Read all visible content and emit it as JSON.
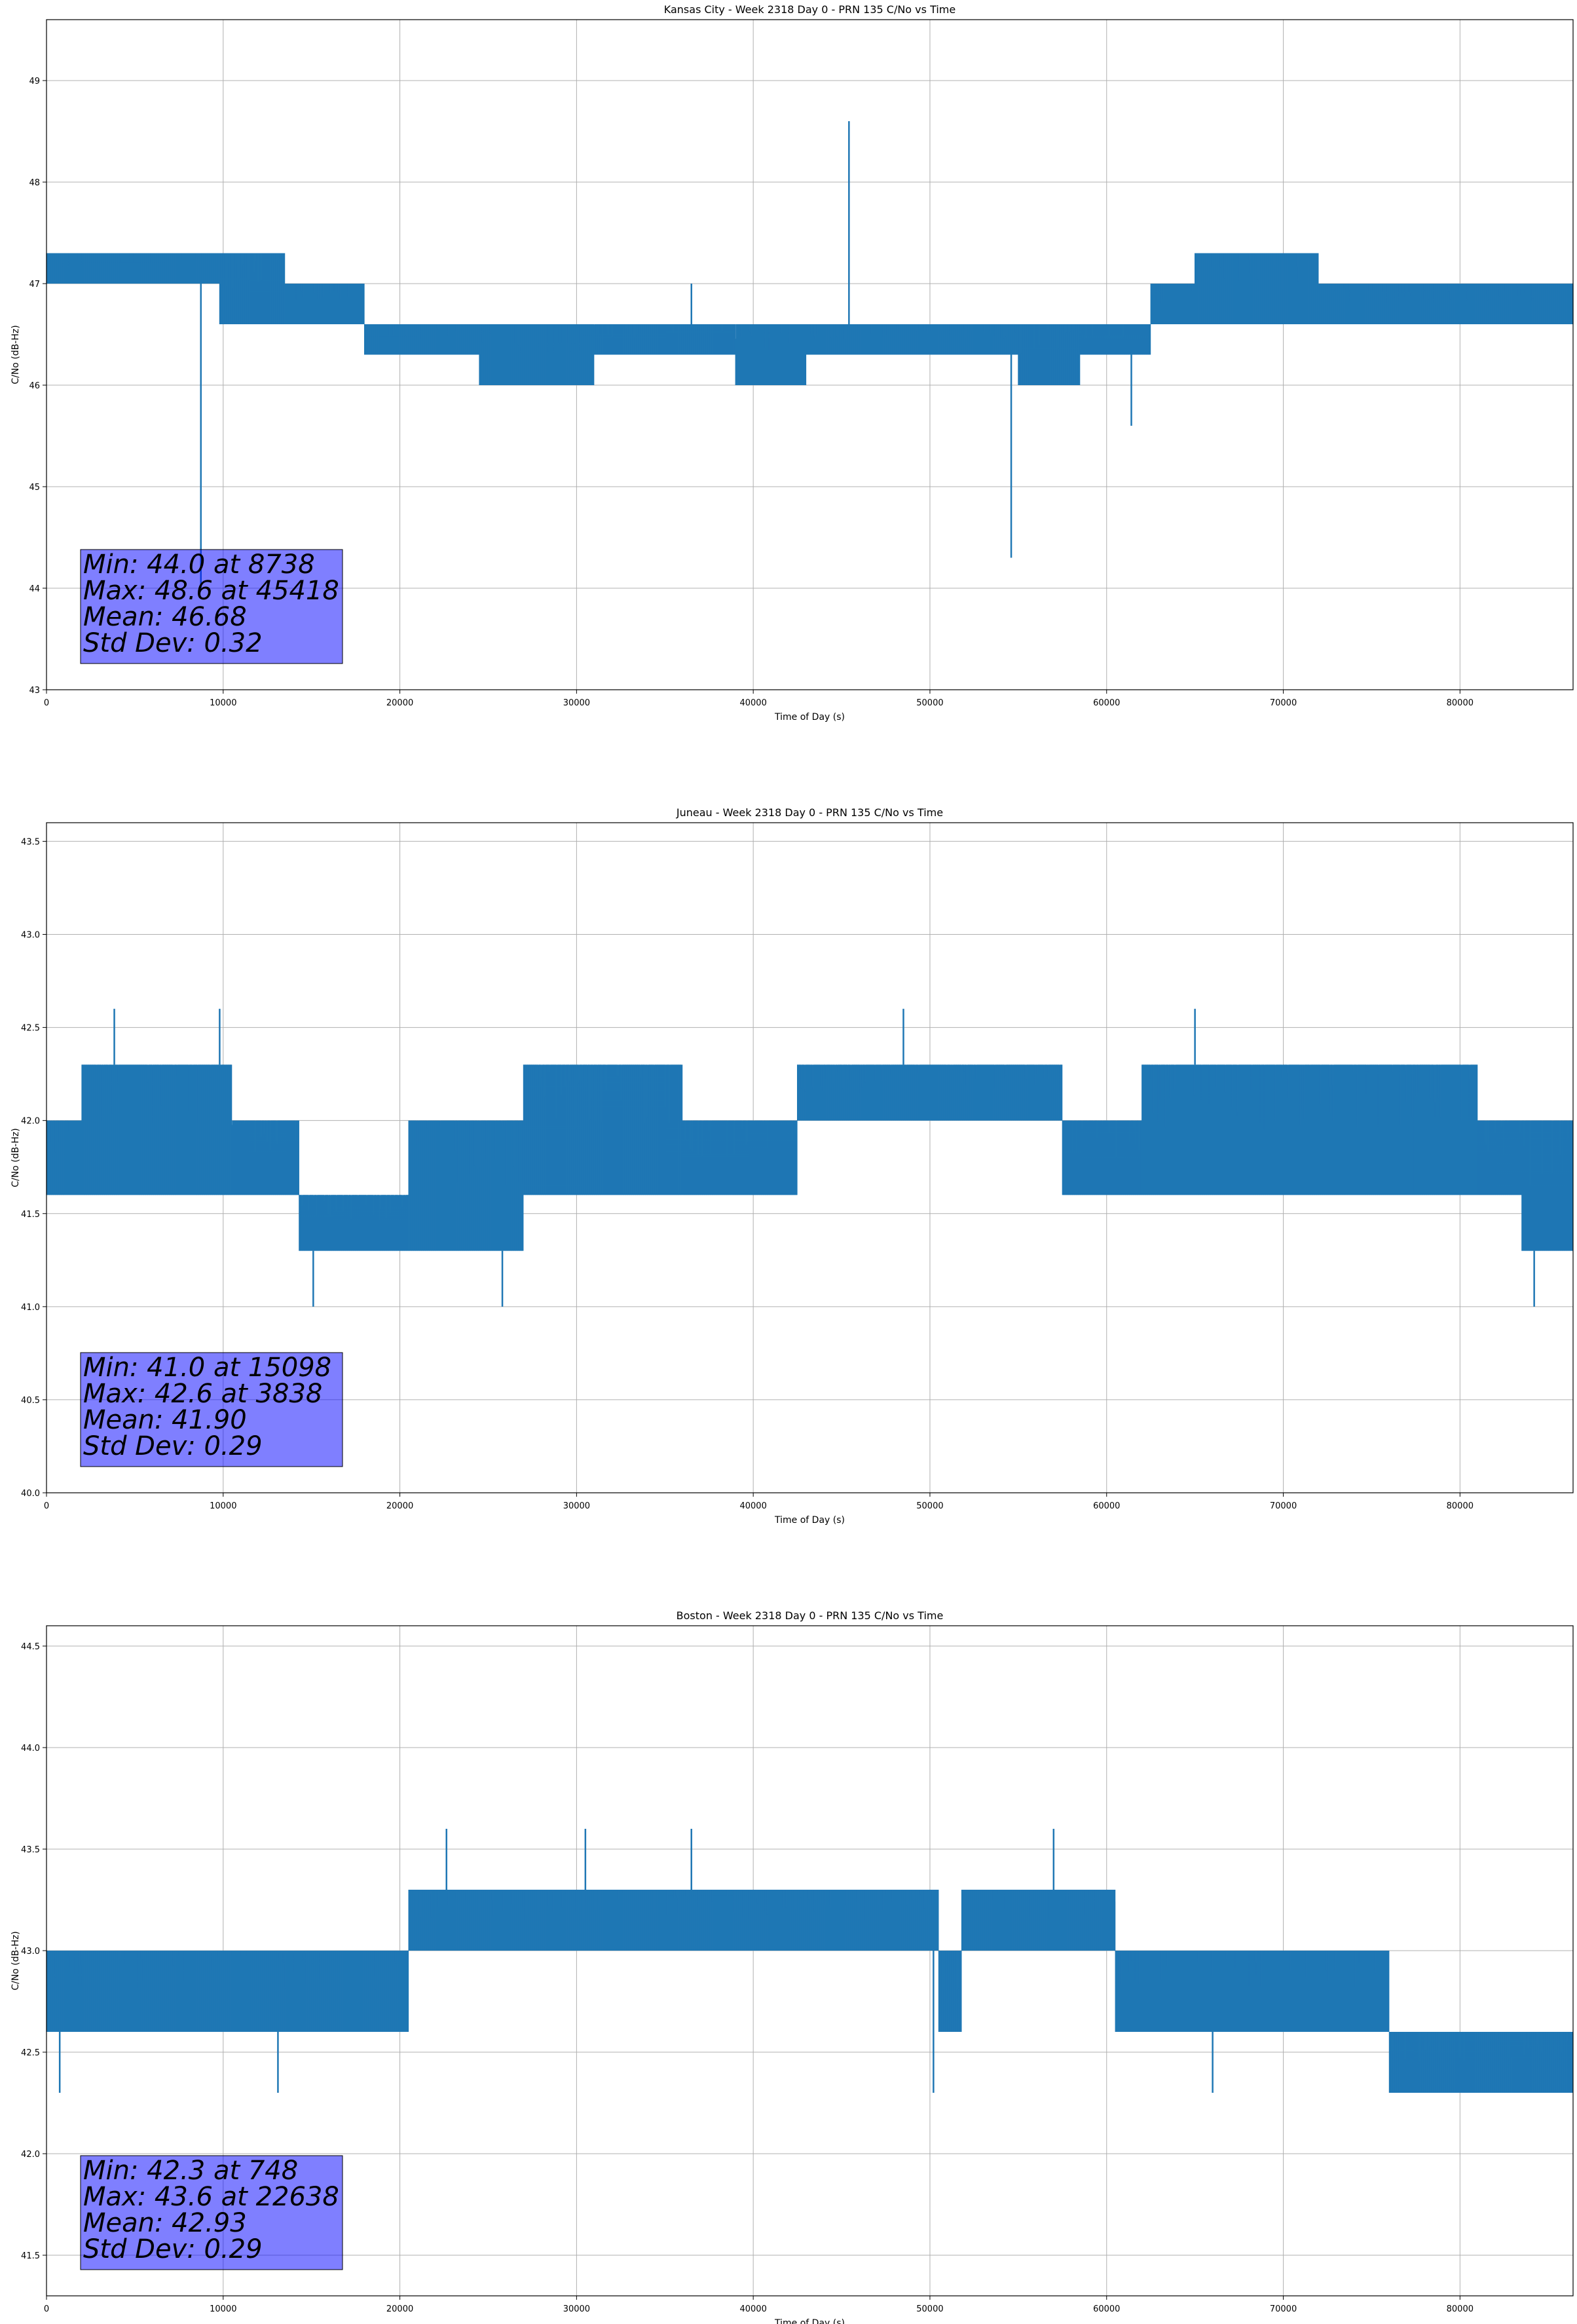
{
  "chart_data": [
    {
      "type": "line",
      "title": "Kansas City - Week 2318 Day 0 - PRN 135 C/No vs Time",
      "xlabel": "Time of Day (s)",
      "ylabel": "C/No (dB-Hz)",
      "xlim": [
        0,
        86400
      ],
      "ylim": [
        43,
        49.6
      ],
      "xticks": [
        0,
        10000,
        20000,
        30000,
        40000,
        50000,
        60000,
        70000,
        80000
      ],
      "xtick_labels": [
        "0",
        "10000",
        "20000",
        "30000",
        "40000",
        "50000",
        "60000",
        "70000",
        "80000"
      ],
      "yticks": [
        43,
        44,
        45,
        46,
        47,
        48,
        49
      ],
      "ytick_labels": [
        "43",
        "44",
        "45",
        "46",
        "47",
        "48",
        "49"
      ],
      "grid": true,
      "series_color": "#1f77b4",
      "segments": [
        {
          "x0": 0,
          "x1": 9800,
          "lo": 47.0,
          "hi": 47.3
        },
        {
          "x0": 9800,
          "x1": 13500,
          "lo": 46.6,
          "hi": 47.3
        },
        {
          "x0": 13500,
          "x1": 18000,
          "lo": 46.6,
          "hi": 47.0
        },
        {
          "x0": 18000,
          "x1": 24500,
          "lo": 46.3,
          "hi": 46.6
        },
        {
          "x0": 24500,
          "x1": 31000,
          "lo": 46.0,
          "hi": 46.6
        },
        {
          "x0": 31000,
          "x1": 39000,
          "lo": 46.3,
          "hi": 46.6
        },
        {
          "x0": 39000,
          "x1": 43000,
          "lo": 46.0,
          "hi": 46.6
        },
        {
          "x0": 43000,
          "x1": 55000,
          "lo": 46.3,
          "hi": 46.6
        },
        {
          "x0": 55000,
          "x1": 58500,
          "lo": 46.0,
          "hi": 46.6
        },
        {
          "x0": 58500,
          "x1": 62500,
          "lo": 46.3,
          "hi": 46.6
        },
        {
          "x0": 62500,
          "x1": 65000,
          "lo": 46.6,
          "hi": 47.0
        },
        {
          "x0": 65000,
          "x1": 72000,
          "lo": 46.6,
          "hi": 47.3
        },
        {
          "x0": 72000,
          "x1": 86400,
          "lo": 46.6,
          "hi": 47.0
        }
      ],
      "spikes": [
        {
          "x": 8738,
          "y": 44.0
        },
        {
          "x": 45418,
          "y": 48.6
        },
        {
          "x": 54600,
          "y": 44.3
        },
        {
          "x": 61400,
          "y": 45.6
        },
        {
          "x": 36500,
          "y": 47.0
        }
      ],
      "stats": [
        "Min: 44.0 at 8738",
        "Max: 48.6 at 45418",
        "Mean: 46.68",
        "Std Dev: 0.32"
      ]
    },
    {
      "type": "line",
      "title": "Juneau - Week 2318 Day 0 - PRN 135 C/No vs Time",
      "xlabel": "Time of Day (s)",
      "ylabel": "C/No (dB-Hz)",
      "xlim": [
        0,
        86400
      ],
      "ylim": [
        40.0,
        43.6
      ],
      "xticks": [
        0,
        10000,
        20000,
        30000,
        40000,
        50000,
        60000,
        70000,
        80000
      ],
      "xtick_labels": [
        "0",
        "10000",
        "20000",
        "30000",
        "40000",
        "50000",
        "60000",
        "70000",
        "80000"
      ],
      "yticks": [
        40.0,
        40.5,
        41.0,
        41.5,
        42.0,
        42.5,
        43.0,
        43.5
      ],
      "ytick_labels": [
        "40.0",
        "40.5",
        "41.0",
        "41.5",
        "42.0",
        "42.5",
        "43.0",
        "43.5"
      ],
      "grid": true,
      "series_color": "#1f77b4",
      "segments": [
        {
          "x0": 0,
          "x1": 2000,
          "lo": 41.6,
          "hi": 42.0
        },
        {
          "x0": 2000,
          "x1": 10500,
          "lo": 41.6,
          "hi": 42.3
        },
        {
          "x0": 10500,
          "x1": 14300,
          "lo": 41.6,
          "hi": 42.0
        },
        {
          "x0": 14300,
          "x1": 20500,
          "lo": 41.3,
          "hi": 41.6
        },
        {
          "x0": 20500,
          "x1": 27000,
          "lo": 41.3,
          "hi": 42.0
        },
        {
          "x0": 27000,
          "x1": 36000,
          "lo": 41.6,
          "hi": 42.3
        },
        {
          "x0": 36000,
          "x1": 42500,
          "lo": 41.6,
          "hi": 42.0
        },
        {
          "x0": 42500,
          "x1": 57500,
          "lo": 42.0,
          "hi": 42.3
        },
        {
          "x0": 57500,
          "x1": 62000,
          "lo": 41.6,
          "hi": 42.0
        },
        {
          "x0": 62000,
          "x1": 81000,
          "lo": 41.6,
          "hi": 42.3
        },
        {
          "x0": 81000,
          "x1": 83500,
          "lo": 41.6,
          "hi": 42.0
        },
        {
          "x0": 83500,
          "x1": 86400,
          "lo": 41.3,
          "hi": 42.0
        }
      ],
      "spikes": [
        {
          "x": 3838,
          "y": 42.6
        },
        {
          "x": 15098,
          "y": 41.0
        },
        {
          "x": 9800,
          "y": 42.6
        },
        {
          "x": 25800,
          "y": 41.0
        },
        {
          "x": 48500,
          "y": 42.6
        },
        {
          "x": 65000,
          "y": 42.6
        },
        {
          "x": 84200,
          "y": 41.0
        }
      ],
      "stats": [
        "Min: 41.0 at 15098",
        "Max: 42.6 at 3838",
        "Mean: 41.90",
        "Std Dev: 0.29"
      ]
    },
    {
      "type": "line",
      "title": "Boston - Week 2318 Day 0 - PRN 135 C/No vs Time",
      "xlabel": "Time of Day (s)",
      "ylabel": "C/No (dB-Hz)",
      "xlim": [
        0,
        86400
      ],
      "ylim": [
        41.3,
        44.6
      ],
      "xticks": [
        0,
        10000,
        20000,
        30000,
        40000,
        50000,
        60000,
        70000,
        80000
      ],
      "xtick_labels": [
        "0",
        "10000",
        "20000",
        "30000",
        "40000",
        "50000",
        "60000",
        "70000",
        "80000"
      ],
      "yticks": [
        41.5,
        42.0,
        42.5,
        43.0,
        43.5,
        44.0,
        44.5
      ],
      "ytick_labels": [
        "41.5",
        "42.0",
        "42.5",
        "43.0",
        "43.5",
        "44.0",
        "44.5"
      ],
      "grid": true,
      "series_color": "#1f77b4",
      "segments": [
        {
          "x0": 0,
          "x1": 20500,
          "lo": 42.6,
          "hi": 43.0
        },
        {
          "x0": 20500,
          "x1": 50500,
          "lo": 43.0,
          "hi": 43.3
        },
        {
          "x0": 50500,
          "x1": 51800,
          "lo": 42.6,
          "hi": 43.0
        },
        {
          "x0": 51800,
          "x1": 60500,
          "lo": 43.0,
          "hi": 43.3
        },
        {
          "x0": 60500,
          "x1": 76000,
          "lo": 42.6,
          "hi": 43.0
        },
        {
          "x0": 76000,
          "x1": 86400,
          "lo": 42.3,
          "hi": 42.6
        }
      ],
      "spikes": [
        {
          "x": 748,
          "y": 42.3
        },
        {
          "x": 22638,
          "y": 43.6
        },
        {
          "x": 13100,
          "y": 42.3
        },
        {
          "x": 30500,
          "y": 43.6
        },
        {
          "x": 36500,
          "y": 43.6
        },
        {
          "x": 50200,
          "y": 42.3
        },
        {
          "x": 57000,
          "y": 43.6
        },
        {
          "x": 66000,
          "y": 42.3
        }
      ],
      "stats": [
        "Min: 42.3 at 748",
        "Max: 43.6 at 22638",
        "Mean: 42.93",
        "Std Dev: 0.29"
      ]
    }
  ]
}
